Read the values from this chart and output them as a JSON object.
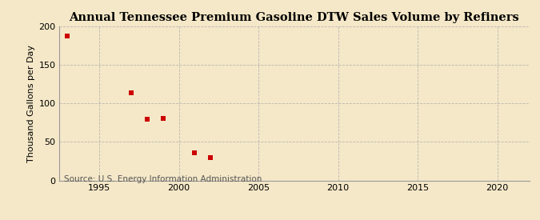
{
  "title": "Annual Tennessee Premium Gasoline DTW Sales Volume by Refiners",
  "ylabel": "Thousand Gallons per Day",
  "source": "Source: U.S. Energy Information Administration",
  "x_data": [
    1993,
    1997,
    1998,
    1999,
    2001,
    2002
  ],
  "y_data": [
    188,
    114,
    79,
    81,
    36,
    30
  ],
  "marker": "s",
  "marker_color": "#cc0000",
  "marker_size": 4,
  "xlim": [
    1992.5,
    2022
  ],
  "ylim": [
    0,
    200
  ],
  "xticks": [
    1995,
    2000,
    2005,
    2010,
    2015,
    2020
  ],
  "yticks": [
    0,
    50,
    100,
    150,
    200
  ],
  "grid_color": "#aaaaaa",
  "background_color": "#f5e8c8",
  "title_fontsize": 10.5,
  "label_fontsize": 8,
  "tick_fontsize": 8,
  "source_fontsize": 7.5
}
